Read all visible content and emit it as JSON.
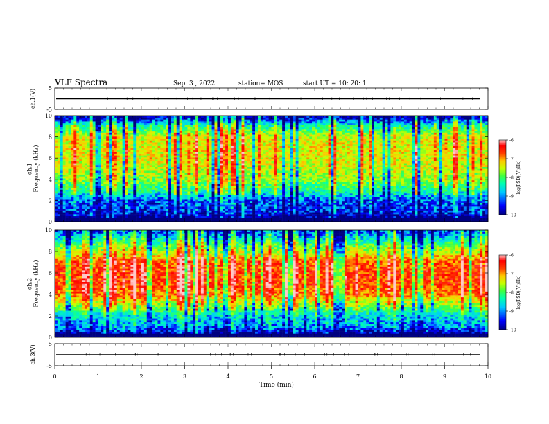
{
  "header": {
    "title": "VLF Spectra",
    "date": "Sep. 3 , 2022",
    "station": "station= MOS",
    "start": "start UT = 10: 20: 1"
  },
  "colors": {
    "colormap": [
      "#000080",
      "#0000ff",
      "#00c8ff",
      "#00ffb0",
      "#40ff40",
      "#c8ff00",
      "#ffc800",
      "#ff3c00",
      "#ff0000",
      "#ffc8c8"
    ]
  },
  "chart_data": [
    {
      "type": "line",
      "panel": "ch1-waveform",
      "ylabel": "ch.1(V)",
      "yticks": [
        "5",
        "-5"
      ],
      "ylim": [
        -5,
        5
      ],
      "xlim": [
        0,
        10
      ],
      "description_value": "flat trace near 0 V",
      "series": [
        {
          "values_level": 0
        }
      ]
    },
    {
      "type": "heatmap",
      "panel": "ch1-spectrogram",
      "ylabel": "ch.1\nFrequency (kHz)",
      "ylim": [
        0,
        10
      ],
      "yticks": [
        "0",
        "2",
        "4",
        "6",
        "8",
        "10"
      ],
      "xlim": [
        0,
        10
      ],
      "colorbar": {
        "label": "log(PSD)(V²/Hz)",
        "ticks": [
          "-6",
          "-7",
          "-8",
          "-9",
          "-10"
        ],
        "range": [
          -10,
          -6
        ]
      },
      "profile_log_psd": [
        {
          "freq_khz": 0.3,
          "value": -10
        },
        {
          "freq_khz": 1.0,
          "value": -9.6
        },
        {
          "freq_khz": 2.0,
          "value": -9.4
        },
        {
          "freq_khz": 3.0,
          "value": -8.6
        },
        {
          "freq_khz": 4.0,
          "value": -8.0
        },
        {
          "freq_khz": 5.0,
          "value": -7.8
        },
        {
          "freq_khz": 6.0,
          "value": -7.6
        },
        {
          "freq_khz": 7.0,
          "value": -7.6
        },
        {
          "freq_khz": 8.0,
          "value": -7.7
        },
        {
          "freq_khz": 9.0,
          "value": -8.6
        },
        {
          "freq_khz": 9.8,
          "value": -9.8
        }
      ]
    },
    {
      "type": "heatmap",
      "panel": "ch2-spectrogram",
      "ylabel": "ch.2\nFrequency (kHz)",
      "ylim": [
        0,
        10
      ],
      "yticks": [
        "0",
        "2",
        "4",
        "6",
        "8",
        "10"
      ],
      "xlim": [
        0,
        10
      ],
      "colorbar": {
        "label": "log(PSD)(V²/Hz)",
        "ticks": [
          "-6",
          "-7",
          "-8",
          "-9",
          "-10"
        ],
        "range": [
          -10,
          -6
        ]
      },
      "profile_log_psd": [
        {
          "freq_khz": 0.3,
          "value": -10
        },
        {
          "freq_khz": 1.0,
          "value": -9.2
        },
        {
          "freq_khz": 2.0,
          "value": -8.9
        },
        {
          "freq_khz": 3.0,
          "value": -8.0
        },
        {
          "freq_khz": 4.0,
          "value": -7.1
        },
        {
          "freq_khz": 5.0,
          "value": -6.8
        },
        {
          "freq_khz": 6.0,
          "value": -6.8
        },
        {
          "freq_khz": 7.0,
          "value": -6.9
        },
        {
          "freq_khz": 8.0,
          "value": -7.8
        },
        {
          "freq_khz": 9.0,
          "value": -8.6
        },
        {
          "freq_khz": 9.8,
          "value": -9.4
        }
      ]
    },
    {
      "type": "line",
      "panel": "ch3-waveform",
      "ylabel": "ch.3(V)",
      "yticks": [
        "5",
        "-5"
      ],
      "ylim": [
        -5,
        5
      ],
      "xlim": [
        0,
        10
      ],
      "series": [
        {
          "values_level": 0
        }
      ]
    }
  ],
  "xaxis": {
    "label": "Time (min)",
    "ticks": [
      "0",
      "1",
      "2",
      "3",
      "4",
      "5",
      "6",
      "7",
      "8",
      "9",
      "10"
    ]
  }
}
